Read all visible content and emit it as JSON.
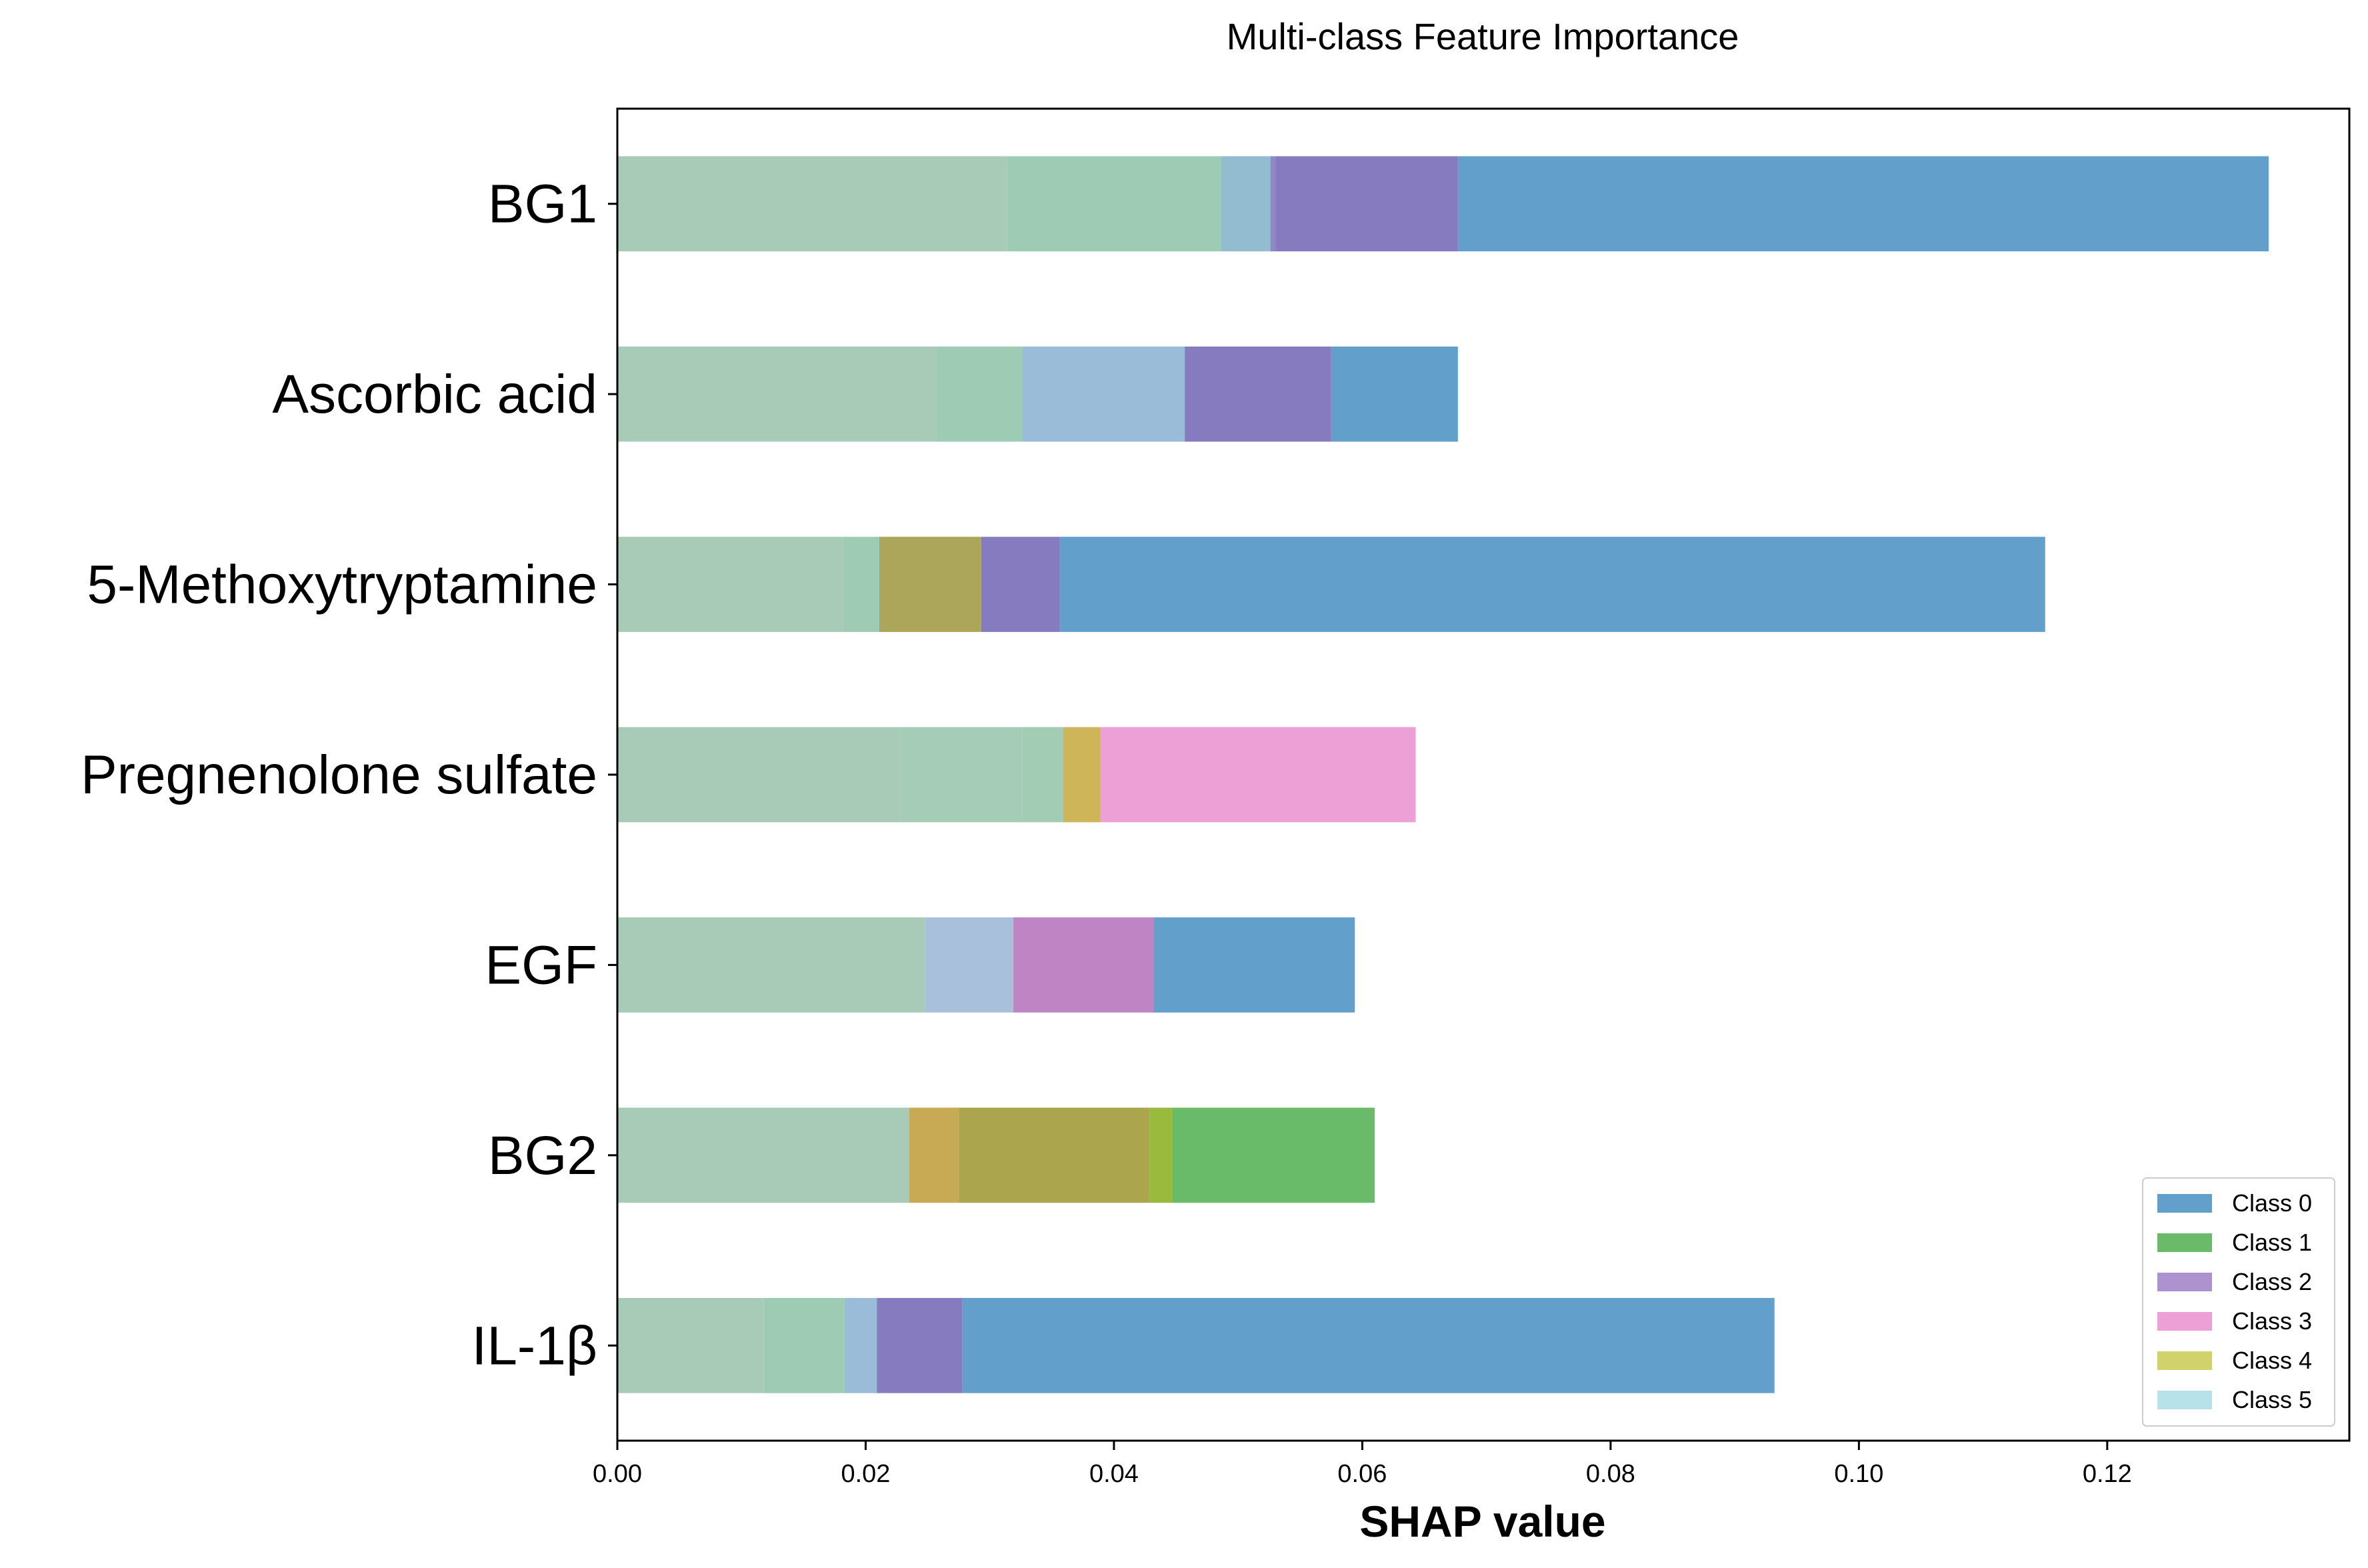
{
  "chart_data": {
    "type": "bar",
    "orientation": "horizontal",
    "stacked": true,
    "title": "Multi-class Feature Importance",
    "xlabel": "SHAP value",
    "ylabel": "",
    "xlim": [
      0,
      0.1395
    ],
    "xticks": [
      "0.00",
      "0.02",
      "0.04",
      "0.06",
      "0.08",
      "0.10",
      "0.12"
    ],
    "xtick_values": [
      0,
      0.02,
      0.04,
      0.06,
      0.08,
      0.1,
      0.12
    ],
    "categories": [
      "BG1",
      "Ascorbic acid",
      "5-Methoxytryptamine",
      "Pregnenolone sulfate",
      "EGF",
      "BG2",
      "IL-1β"
    ],
    "legend": {
      "position": "lower-right",
      "entries": [
        {
          "name": "Class 0",
          "color": "#629fcb"
        },
        {
          "name": "Class 1",
          "color": "#69bb69"
        },
        {
          "name": "Class 2",
          "color": "#ac92cf"
        },
        {
          "name": "Class 3",
          "color": "#eca0d5"
        },
        {
          "name": "Class 4",
          "color": "#d2d26c"
        },
        {
          "name": "Class 5",
          "color": "#b8e2ea"
        }
      ]
    },
    "bars": [
      {
        "category": "BG1",
        "segments": [
          {
            "to": 0.0314,
            "color": "#a8cbb8"
          },
          {
            "to": 0.0486,
            "color": "#9ecbb4"
          },
          {
            "to": 0.0526,
            "color": "#94bcd1"
          },
          {
            "to": 0.053,
            "color": "#8f89c7"
          },
          {
            "to": 0.0677,
            "color": "#877bc0"
          },
          {
            "to": 0.133,
            "color": "#629fcb"
          }
        ]
      },
      {
        "category": "Ascorbic acid",
        "segments": [
          {
            "to": 0.0258,
            "color": "#a8cbb8"
          },
          {
            "to": 0.0326,
            "color": "#9ecbb4"
          },
          {
            "to": 0.0457,
            "color": "#9abcd8"
          },
          {
            "to": 0.0575,
            "color": "#877bc0"
          },
          {
            "to": 0.0677,
            "color": "#629fcb"
          }
        ]
      },
      {
        "category": "5-Methoxytryptamine",
        "segments": [
          {
            "to": 0.0182,
            "color": "#a8cbb8"
          },
          {
            "to": 0.0211,
            "color": "#9ecbb4"
          },
          {
            "to": 0.0293,
            "color": "#aba65a"
          },
          {
            "to": 0.0356,
            "color": "#877bc0"
          },
          {
            "to": 0.115,
            "color": "#629fcb"
          }
        ]
      },
      {
        "category": "Pregnenolone sulfate",
        "segments": [
          {
            "to": 0.0228,
            "color": "#a8cbb8"
          },
          {
            "to": 0.0326,
            "color": "#a5ccb6"
          },
          {
            "to": 0.0359,
            "color": "#a2ccb4"
          },
          {
            "to": 0.0389,
            "color": "#cfb55a"
          },
          {
            "to": 0.0643,
            "color": "#eca0d5"
          }
        ]
      },
      {
        "category": "EGF",
        "segments": [
          {
            "to": 0.0248,
            "color": "#a8cbb8"
          },
          {
            "to": 0.0319,
            "color": "#a8c0dc"
          },
          {
            "to": 0.0432,
            "color": "#bf84c3"
          },
          {
            "to": 0.0594,
            "color": "#629fcb"
          }
        ]
      },
      {
        "category": "BG2",
        "segments": [
          {
            "to": 0.0235,
            "color": "#a8cbb8"
          },
          {
            "to": 0.0275,
            "color": "#c8aa55"
          },
          {
            "to": 0.0428,
            "color": "#aba64e"
          },
          {
            "to": 0.0447,
            "color": "#99ba3c"
          },
          {
            "to": 0.061,
            "color": "#69bb69"
          }
        ]
      },
      {
        "category": "IL-1β",
        "segments": [
          {
            "to": 0.0118,
            "color": "#a8cbb8"
          },
          {
            "to": 0.0183,
            "color": "#9ecbb4"
          },
          {
            "to": 0.0209,
            "color": "#9abcd8"
          },
          {
            "to": 0.0278,
            "color": "#877bc0"
          },
          {
            "to": 0.0932,
            "color": "#629fcb"
          }
        ]
      }
    ]
  }
}
